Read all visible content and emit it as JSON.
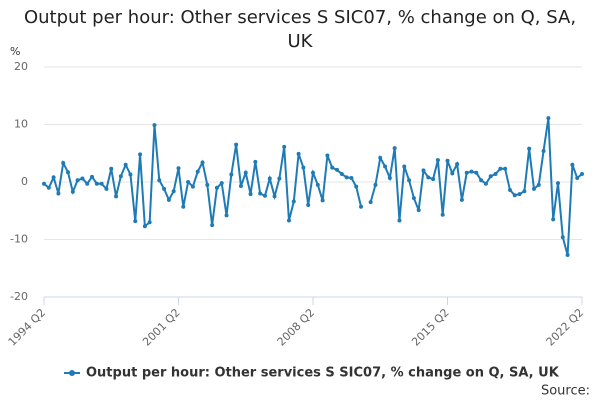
{
  "chart_data": {
    "type": "line",
    "title": "Output per hour: Other services S SIC07, % change on Q, SA, UK",
    "y_label": "%",
    "source": "Source:",
    "categories": [
      "1994 Q2",
      null,
      null,
      null,
      null,
      null,
      null,
      null,
      null,
      null,
      null,
      null,
      null,
      null,
      null,
      null,
      null,
      null,
      null,
      null,
      null,
      null,
      null,
      null,
      null,
      null,
      null,
      null,
      "2001 Q2",
      null,
      null,
      null,
      null,
      null,
      null,
      null,
      null,
      null,
      null,
      null,
      null,
      null,
      null,
      null,
      null,
      null,
      null,
      null,
      null,
      null,
      null,
      null,
      null,
      null,
      null,
      null,
      "2008 Q2",
      null,
      null,
      null,
      null,
      null,
      null,
      null,
      null,
      null,
      null,
      null,
      null,
      null,
      null,
      null,
      null,
      null,
      null,
      null,
      null,
      null,
      null,
      null,
      null,
      null,
      null,
      null,
      "2015 Q2",
      null,
      null,
      null,
      null,
      null,
      null,
      null,
      null,
      null,
      null,
      null,
      null,
      null,
      null,
      null,
      null,
      null,
      null,
      null,
      null,
      null,
      null,
      null,
      null,
      null,
      null,
      null,
      "2022 Q2"
    ],
    "series": [
      {
        "name": "Output per hour: Other services S SIC07, % change on Q, SA, UK",
        "color": "#1f7bb6",
        "values": [
          -0.3,
          -1,
          0.8,
          -2,
          3.3,
          1.7,
          -1.7,
          0.3,
          0.6,
          -0.3,
          0.9,
          -0.3,
          -0.3,
          -1.2,
          2.3,
          -2.5,
          1,
          3,
          1.3,
          -6.8,
          4.8,
          -7.7,
          -7,
          9.9,
          0.3,
          -1.2,
          -3.1,
          -1.6,
          2.4,
          -4.3,
          0,
          -0.8,
          1.8,
          3.4,
          -0.5,
          -7.5,
          -1,
          -0.2,
          -5.8,
          1.3,
          6.5,
          -0.7,
          1.6,
          -2.1,
          3.5,
          -2,
          -2.4,
          0.6,
          -2.5,
          0.6,
          6.1,
          -6.7,
          -3.4,
          4.9,
          2.5,
          -4,
          1.6,
          -0.5,
          -3.2,
          4.6,
          2.5,
          2.1,
          1.4,
          0.8,
          0.7,
          -0.8,
          -4.3,
          null,
          -3.5,
          -0.5,
          4.2,
          2.7,
          0.7,
          5.9,
          -6.7,
          2.7,
          0.3,
          -2.8,
          -4.9,
          2,
          0.8,
          0.5,
          3.8,
          -5.7,
          3.7,
          1.5,
          3.1,
          -3.1,
          1.6,
          1.8,
          1.6,
          0.3,
          -0.3,
          1,
          1.4,
          2.3,
          2.3,
          -1.4,
          -2.3,
          -2.1,
          -1.6,
          5.8,
          -1.2,
          -0.5,
          5.4,
          11.1,
          -6.5,
          -0.2,
          -9.6,
          -12.7,
          3,
          0.7,
          1.4
        ]
      }
    ],
    "ylim": [
      -20,
      20
    ],
    "yticks": [
      -20,
      -10,
      0,
      10,
      20
    ],
    "grid": true
  }
}
